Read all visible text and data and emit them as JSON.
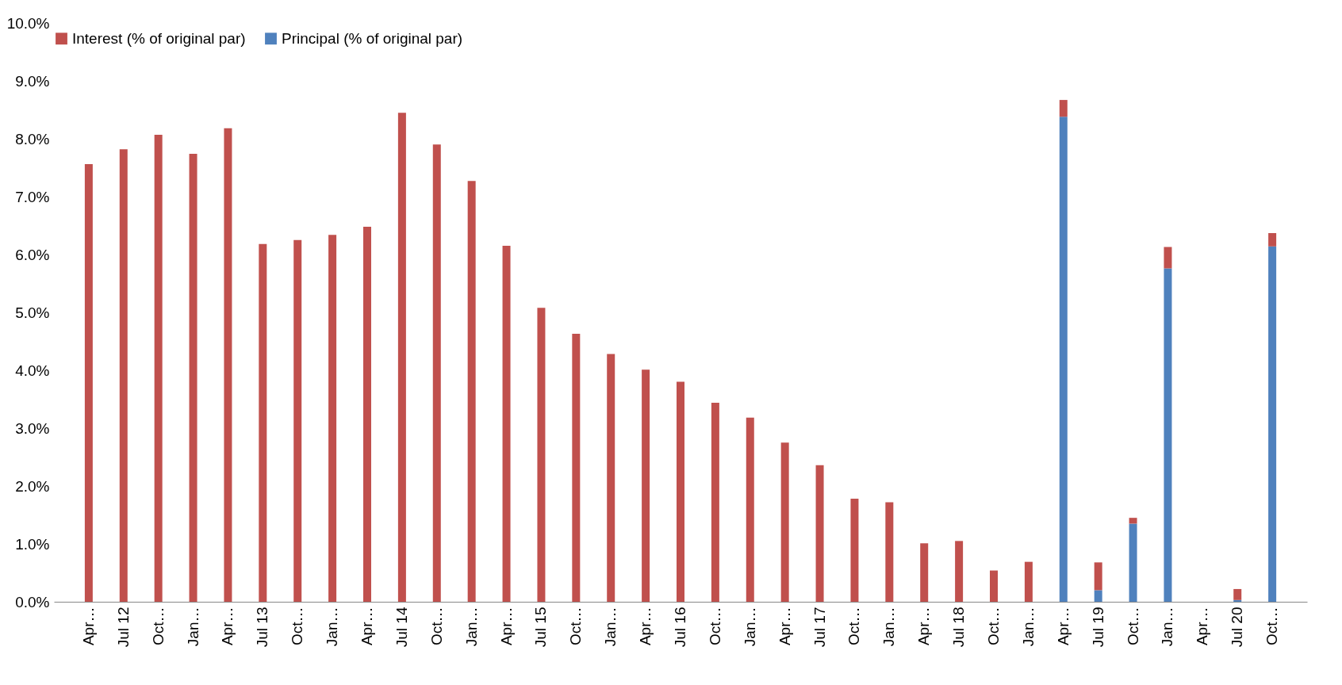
{
  "chart_data": {
    "type": "bar",
    "stacked": true,
    "legend": "top",
    "grid": false,
    "categories": [
      "Apr…",
      "Jul 12",
      "Oct…",
      "Jan…",
      "Apr…",
      "Jul 13",
      "Oct…",
      "Jan…",
      "Apr…",
      "Jul 14",
      "Oct…",
      "Jan…",
      "Apr…",
      "Jul 15",
      "Oct…",
      "Jan…",
      "Apr…",
      "Jul 16",
      "Oct…",
      "Jan…",
      "Apr…",
      "Jul 17",
      "Oct…",
      "Jan…",
      "Apr…",
      "Jul 18",
      "Oct…",
      "Jan…",
      "Apr…",
      "Jul 19",
      "Oct…",
      "Jan…",
      "Apr…",
      "Jul 20",
      "Oct…"
    ],
    "series": [
      {
        "name": "Principal (% of original par)",
        "color": "#4f81bd",
        "values": [
          0,
          0,
          0,
          0,
          0,
          0,
          0,
          0,
          0,
          0,
          0,
          0,
          0,
          0,
          0,
          0,
          0,
          0,
          0,
          0,
          0,
          0,
          0,
          0,
          0,
          0,
          0,
          0,
          8.38,
          0.2,
          1.35,
          5.76,
          0,
          0.03,
          6.14
        ]
      },
      {
        "name": "Interest (% of original par)",
        "color": "#c0504d",
        "values": [
          7.56,
          7.82,
          8.07,
          7.74,
          8.18,
          6.18,
          6.25,
          6.34,
          6.48,
          8.45,
          7.9,
          7.27,
          6.15,
          5.08,
          4.63,
          4.28,
          4.01,
          3.8,
          3.44,
          3.18,
          2.75,
          2.36,
          1.78,
          1.72,
          1.01,
          1.05,
          0.54,
          0.69,
          0.29,
          0.48,
          0.1,
          0.37,
          0,
          0.19,
          0.23
        ]
      }
    ],
    "ylim": [
      0,
      10
    ],
    "yticks": [
      {
        "value": 0,
        "label": "0.0%"
      },
      {
        "value": 1,
        "label": "1.0%"
      },
      {
        "value": 2,
        "label": "2.0%"
      },
      {
        "value": 3,
        "label": "3.0%"
      },
      {
        "value": 4,
        "label": "4.0%"
      },
      {
        "value": 5,
        "label": "5.0%"
      },
      {
        "value": 6,
        "label": "6.0%"
      },
      {
        "value": 7,
        "label": "7.0%"
      },
      {
        "value": 8,
        "label": "8.0%"
      },
      {
        "value": 9,
        "label": "9.0%"
      },
      {
        "value": 10,
        "label": "10.0%"
      }
    ]
  }
}
